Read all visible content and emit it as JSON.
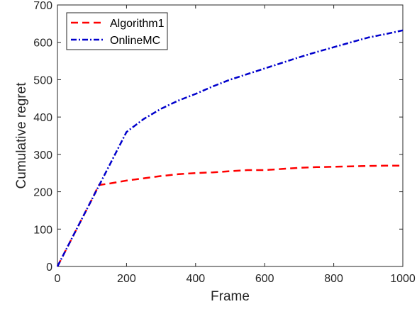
{
  "chart_data": {
    "type": "line",
    "xlabel": "Frame",
    "ylabel": "Cumulative regret",
    "xlim": [
      0,
      1000
    ],
    "ylim": [
      0,
      700
    ],
    "xticks": [
      0,
      200,
      400,
      600,
      800,
      1000
    ],
    "yticks": [
      0,
      100,
      200,
      300,
      400,
      500,
      600,
      700
    ],
    "grid": false,
    "legend_position": "top-left",
    "series": [
      {
        "name": "Algorithm1",
        "color": "#ff0000",
        "line_style": "dashed",
        "x": [
          0,
          50,
          100,
          120,
          150,
          200,
          250,
          300,
          350,
          400,
          450,
          500,
          550,
          600,
          650,
          700,
          750,
          800,
          850,
          900,
          950,
          990
        ],
        "y": [
          0,
          90,
          180,
          218,
          222,
          230,
          236,
          242,
          247,
          250,
          252,
          255,
          258,
          258,
          261,
          264,
          266,
          267,
          268,
          269,
          270,
          270
        ]
      },
      {
        "name": "OnlineMC",
        "color": "#0000cc",
        "line_style": "dash-dot",
        "x": [
          0,
          50,
          100,
          150,
          200,
          250,
          300,
          350,
          400,
          450,
          500,
          550,
          600,
          650,
          700,
          750,
          800,
          850,
          900,
          950,
          1000
        ],
        "y": [
          0,
          90,
          180,
          270,
          360,
          395,
          422,
          444,
          462,
          482,
          500,
          515,
          530,
          545,
          560,
          574,
          587,
          600,
          613,
          622,
          632
        ]
      }
    ]
  }
}
